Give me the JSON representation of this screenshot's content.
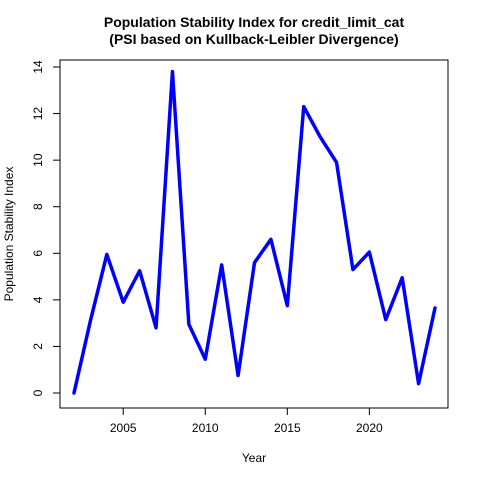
{
  "chart_data": {
    "type": "line",
    "title": "Population Stability Index for credit_limit_cat",
    "subtitle": "(PSI based on Kullback-Leibler Divergence)",
    "xlabel": "Year",
    "ylabel": "Population Stability Index",
    "x": [
      2002,
      2003,
      2004,
      2005,
      2006,
      2007,
      2008,
      2009,
      2010,
      2011,
      2012,
      2013,
      2014,
      2015,
      2016,
      2017,
      2018,
      2019,
      2020,
      2021,
      2022,
      2023,
      2024
    ],
    "series": [
      {
        "values": [
          0.0,
          3.1,
          5.95,
          3.9,
          5.25,
          2.8,
          13.8,
          2.95,
          1.45,
          5.5,
          0.75,
          5.6,
          6.6,
          3.75,
          12.3,
          11.0,
          9.9,
          5.3,
          6.05,
          3.15,
          4.95,
          0.4,
          3.65
        ],
        "color": "#0000FF"
      }
    ],
    "xlim": [
      2002,
      2024
    ],
    "ylim": [
      0,
      14
    ],
    "x_ticks": [
      2005,
      2010,
      2015,
      2020
    ],
    "y_ticks": [
      0,
      2,
      4,
      6,
      8,
      10,
      12,
      14
    ],
    "grid": false,
    "legend": "none"
  }
}
